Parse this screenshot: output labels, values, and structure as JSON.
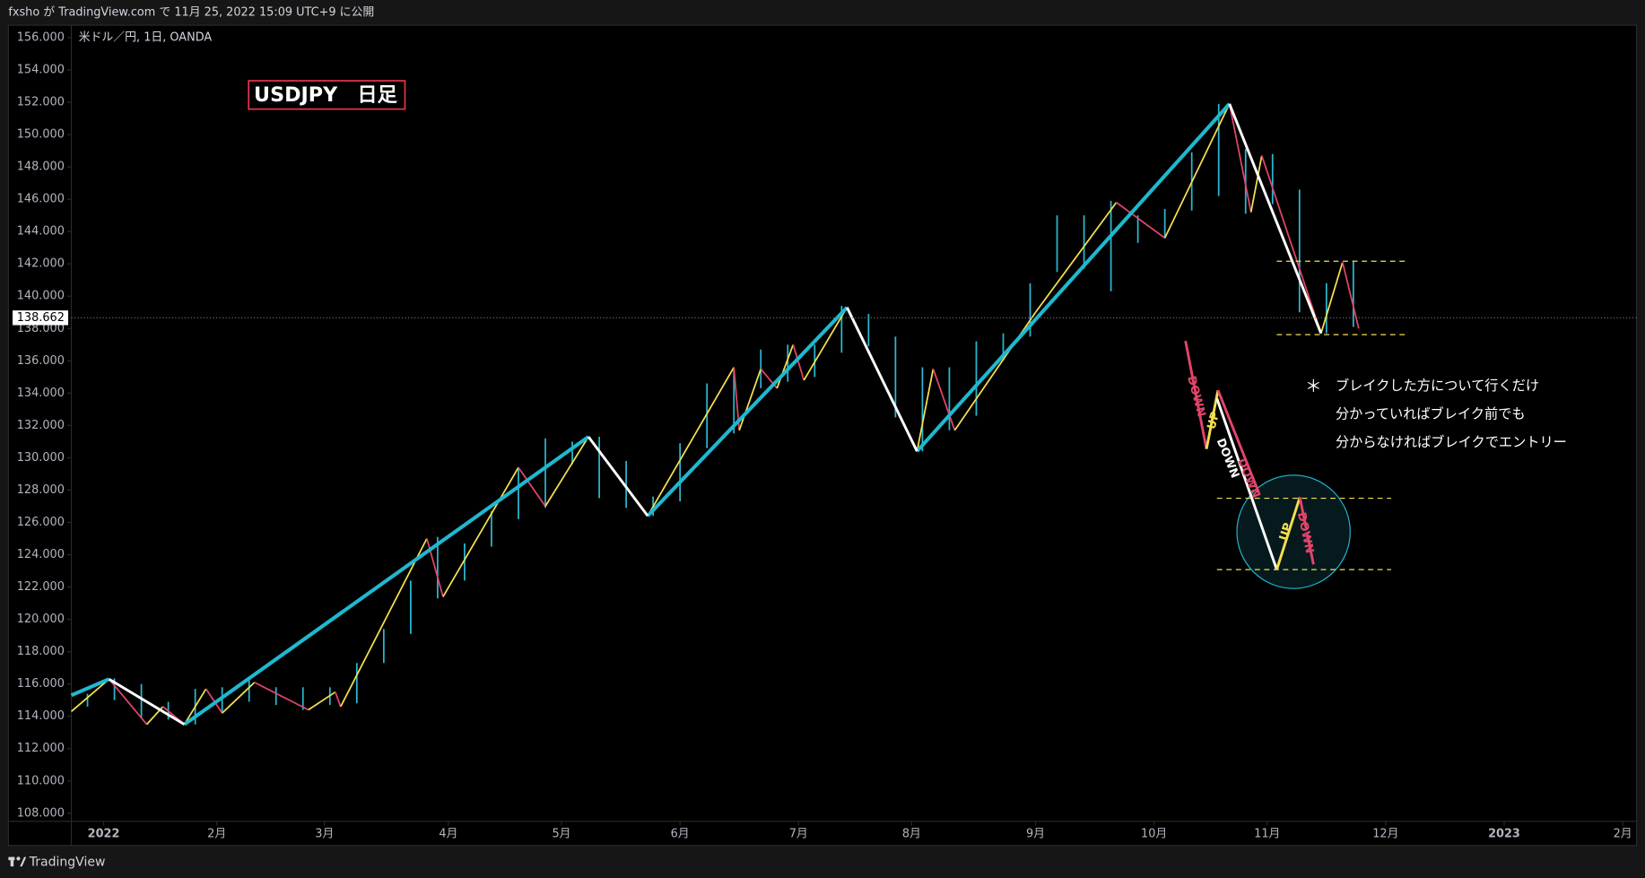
{
  "header": {
    "text": "fxsho が TradingView.com で 11月 25, 2022 15:09 UTC+9 に公開"
  },
  "footer": {
    "brand": "TradingView"
  },
  "chart_data": {
    "type": "range",
    "symbol": "米ドル／円, 1日, OANDA",
    "title": "USDJPY　日足",
    "color": "#2bb7cf",
    "x": [
      "2021-12-27",
      "2022-01-03",
      "2022-01-10",
      "2022-01-17",
      "2022-01-24",
      "2022-01-31",
      "2022-02-07",
      "2022-02-14",
      "2022-02-21",
      "2022-02-28",
      "2022-03-07",
      "2022-03-14",
      "2022-03-21",
      "2022-03-28",
      "2022-04-04",
      "2022-04-11",
      "2022-04-18",
      "2022-04-25",
      "2022-05-02",
      "2022-05-09",
      "2022-05-16",
      "2022-05-23",
      "2022-05-30",
      "2022-06-06",
      "2022-06-13",
      "2022-06-20",
      "2022-06-27",
      "2022-07-04",
      "2022-07-11",
      "2022-07-18",
      "2022-07-25",
      "2022-08-01",
      "2022-08-08",
      "2022-08-15",
      "2022-08-22",
      "2022-08-29",
      "2022-09-05",
      "2022-09-12",
      "2022-09-19",
      "2022-09-26",
      "2022-10-03",
      "2022-10-10",
      "2022-10-17",
      "2022-10-24",
      "2022-10-31",
      "2022-11-07",
      "2022-11-14",
      "2022-11-21"
    ],
    "high": [
      115.4,
      116.35,
      116.0,
      114.9,
      115.7,
      115.8,
      116.3,
      115.8,
      115.8,
      115.8,
      117.3,
      119.4,
      122.4,
      125.1,
      124.7,
      126.7,
      129.4,
      131.2,
      131.0,
      131.3,
      129.8,
      127.6,
      130.9,
      134.6,
      135.6,
      136.7,
      137.0,
      137.0,
      139.4,
      138.9,
      137.5,
      135.6,
      135.6,
      137.2,
      137.7,
      140.8,
      145.0,
      145.0,
      145.9,
      145.0,
      145.4,
      148.9,
      151.9,
      149.1,
      148.8,
      146.6,
      140.8,
      142.2
    ],
    "low": [
      114.6,
      115.0,
      113.9,
      113.8,
      113.5,
      114.2,
      114.9,
      114.7,
      114.4,
      114.7,
      114.8,
      117.3,
      119.1,
      121.3,
      122.4,
      124.5,
      126.2,
      126.9,
      129.6,
      127.5,
      126.9,
      126.4,
      127.3,
      130.6,
      131.5,
      134.3,
      134.7,
      135.0,
      136.5,
      136.9,
      132.5,
      130.4,
      131.7,
      132.6,
      136.2,
      137.5,
      141.5,
      141.7,
      140.3,
      143.3,
      143.6,
      145.3,
      146.2,
      145.1,
      145.7,
      139.0,
      137.7,
      138.1
    ],
    "xlim": [
      "2021-12-24",
      "2023-02-03"
    ],
    "ylim": [
      107.5,
      156.9
    ],
    "xticks": [
      {
        "value": "2022-01",
        "label": "2022"
      },
      {
        "value": "2022-02",
        "label": "2月"
      },
      {
        "value": "2022-03",
        "label": "3月"
      },
      {
        "value": "2022-04",
        "label": "4月"
      },
      {
        "value": "2022-05",
        "label": "5月"
      },
      {
        "value": "2022-06",
        "label": "6月"
      },
      {
        "value": "2022-07",
        "label": "7月"
      },
      {
        "value": "2022-08",
        "label": "8月"
      },
      {
        "value": "2022-09",
        "label": "9月"
      },
      {
        "value": "2022-10",
        "label": "10月"
      },
      {
        "value": "2022-11",
        "label": "11月"
      },
      {
        "value": "2022-12",
        "label": "12月"
      },
      {
        "value": "2023-01",
        "label": "2023"
      },
      {
        "value": "2023-02",
        "label": "2月"
      }
    ],
    "yticks": [
      {
        "value": 108,
        "label": "108.000"
      },
      {
        "value": 110,
        "label": "110.000"
      },
      {
        "value": 112,
        "label": "112.000"
      },
      {
        "value": 114,
        "label": "114.000"
      },
      {
        "value": 116,
        "label": "116.000"
      },
      {
        "value": 118,
        "label": "118.000"
      },
      {
        "value": 120,
        "label": "120.000"
      },
      {
        "value": 122,
        "label": "122.000"
      },
      {
        "value": 124,
        "label": "124.000"
      },
      {
        "value": 126,
        "label": "126.000"
      },
      {
        "value": 128,
        "label": "128.000"
      },
      {
        "value": 130,
        "label": "130.000"
      },
      {
        "value": 132,
        "label": "132.000"
      },
      {
        "value": 134,
        "label": "134.000"
      },
      {
        "value": 136,
        "label": "136.000"
      },
      {
        "value": 138,
        "label": "138.000"
      },
      {
        "value": 140,
        "label": "140.000"
      },
      {
        "value": 142,
        "label": "142.000"
      },
      {
        "value": 144,
        "label": "144.000"
      },
      {
        "value": 146,
        "label": "146.000"
      },
      {
        "value": 148,
        "label": "148.000"
      },
      {
        "value": 150,
        "label": "150.000"
      },
      {
        "value": 152,
        "label": "152.000"
      },
      {
        "value": 154,
        "label": "154.000"
      },
      {
        "value": 156,
        "label": "156.000"
      }
    ],
    "last_price": 138.662,
    "swings": [
      {
        "color": "#1fb8cf",
        "width": 3.5,
        "x": [
          "2021-12-24",
          "2022-01-04",
          null,
          "2022-01-24",
          "2022-05-09",
          null,
          "2022-05-24",
          "2022-07-14",
          null,
          "2022-08-02",
          "2022-10-21"
        ],
        "values": [
          115.3,
          116.3,
          null,
          113.5,
          131.3,
          null,
          126.4,
          139.3,
          null,
          130.4,
          151.9
        ]
      },
      {
        "color": "#ffffff",
        "width": 2.5,
        "x": [
          "2022-01-04",
          "2022-01-24",
          null,
          "2022-05-09",
          "2022-05-24",
          null,
          "2022-07-14",
          "2022-08-02",
          null,
          "2022-10-21",
          "2022-11-15"
        ],
        "values": [
          116.3,
          113.5,
          null,
          131.3,
          126.4,
          null,
          139.3,
          130.4,
          null,
          151.9,
          137.7
        ]
      }
    ],
    "zigzag": {
      "up_color": "#f4e04d",
      "down_color": "#e2456a",
      "x": [
        "2021-12-24",
        "2022-01-04",
        "2022-01-13",
        "2022-01-18",
        "2022-01-24",
        "2022-01-28",
        "2022-02-02",
        "2022-02-10",
        "2022-02-24",
        "2022-03-03",
        "2022-03-04",
        "2022-03-28",
        "2022-03-31",
        "2022-04-20",
        "2022-04-27",
        "2022-05-09",
        "2022-05-24",
        "2022-06-15",
        "2022-06-16",
        "2022-06-22",
        "2022-06-27",
        "2022-06-30",
        "2022-07-04",
        "2022-07-14",
        "2022-08-02",
        "2022-08-05",
        "2022-08-11",
        "2022-09-01",
        "2022-09-22",
        "2022-10-05",
        "2022-10-21",
        "2022-10-27",
        "2022-10-31",
        "2022-11-15",
        "2022-11-21",
        "2022-11-24"
      ],
      "values": [
        114.3,
        116.3,
        113.5,
        114.6,
        113.5,
        115.7,
        114.2,
        116.1,
        114.4,
        115.5,
        114.6,
        125.0,
        121.4,
        129.4,
        127.0,
        131.3,
        126.4,
        135.6,
        131.7,
        135.5,
        134.3,
        137.0,
        134.8,
        139.3,
        130.4,
        135.5,
        131.7,
        139.0,
        145.8,
        143.6,
        151.9,
        145.2,
        148.7,
        137.7,
        142.1,
        138.0
      ]
    }
  },
  "annotations": {
    "note_mark": "＊",
    "notes": [
      "ブレイクした方について行くだけ",
      "分かっていればブレイク前でも",
      "分からなければブレイクでエントリー"
    ],
    "labels": [
      "DOWN",
      "UP",
      "DOWN",
      "DOWN",
      "UP",
      "DOWN"
    ]
  }
}
